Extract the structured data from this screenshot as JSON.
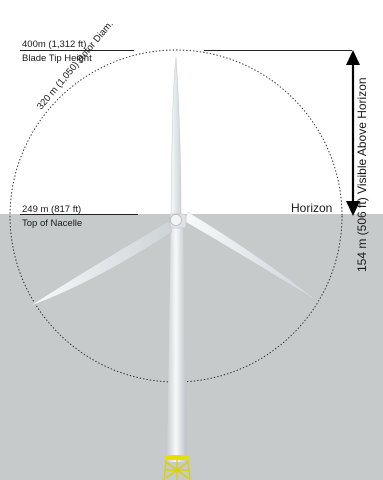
{
  "labels": {
    "blade_tip_value": "400m (1,312 ft)",
    "blade_tip_name": "Blade Tip Height",
    "rotor_diameter": "320 m (1,050) Rotor Diam.",
    "nacelle_value": "249 m (817 ft)",
    "nacelle_name": "Top of Nacelle",
    "horizon": "Horizon",
    "visible_above": "154 m (506 ft) Visible Above Horizon"
  },
  "colors": {
    "sky": "#ffffff",
    "sea": "#c7cacb",
    "tower": "#eef1f3",
    "foundation": "#e4e000",
    "arrow": "#000000"
  }
}
